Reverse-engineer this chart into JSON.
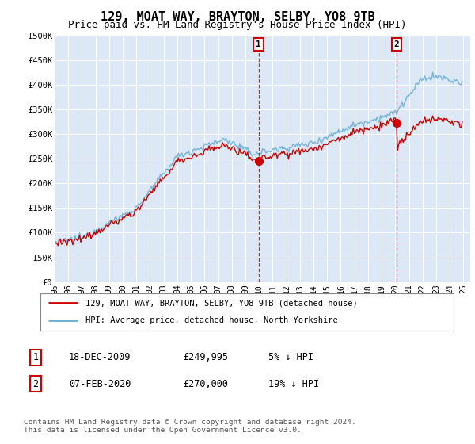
{
  "title": "129, MOAT WAY, BRAYTON, SELBY, YO8 9TB",
  "subtitle": "Price paid vs. HM Land Registry's House Price Index (HPI)",
  "title_fontsize": 11,
  "subtitle_fontsize": 9,
  "ylim": [
    0,
    500000
  ],
  "yticks": [
    0,
    50000,
    100000,
    150000,
    200000,
    250000,
    300000,
    350000,
    400000,
    450000,
    500000
  ],
  "ytick_labels": [
    "£0",
    "£50K",
    "£100K",
    "£150K",
    "£200K",
    "£250K",
    "£300K",
    "£350K",
    "£400K",
    "£450K",
    "£500K"
  ],
  "xlim_start": 1995.0,
  "xlim_end": 2025.5,
  "hpi_color": "#6baed6",
  "hpi_fill_color": "#c6dbef",
  "price_color": "#cc0000",
  "vline_color": "#cc0000",
  "marker1_x": 2009.96,
  "marker2_x": 2020.1,
  "marker1_label": "1",
  "marker2_label": "2",
  "legend_label_red": "129, MOAT WAY, BRAYTON, SELBY, YO8 9TB (detached house)",
  "legend_label_blue": "HPI: Average price, detached house, North Yorkshire",
  "table_row1": [
    "1",
    "18-DEC-2009",
    "£249,995",
    "5% ↓ HPI"
  ],
  "table_row2": [
    "2",
    "07-FEB-2020",
    "£270,000",
    "19% ↓ HPI"
  ],
  "footer": "Contains HM Land Registry data © Crown copyright and database right 2024.\nThis data is licensed under the Open Government Licence v3.0.",
  "background_color": "#ffffff",
  "plot_bg_color": "#dce8f5"
}
